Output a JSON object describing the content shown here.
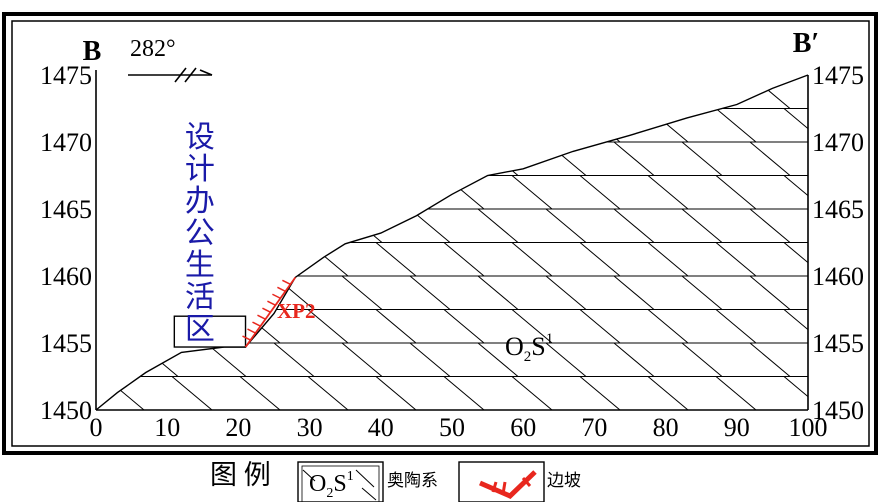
{
  "section": {
    "left_label": "B",
    "right_label": "B′",
    "bearing": "282°"
  },
  "axes": {
    "x_ticks": [
      "0",
      "10",
      "20",
      "30",
      "40",
      "50",
      "60",
      "70",
      "80",
      "90",
      "100"
    ],
    "y_left_ticks": [
      "1475",
      "1470",
      "1465",
      "1460",
      "1455",
      "1450"
    ],
    "y_right_ticks": [
      "1475",
      "1470",
      "1465",
      "1460",
      "1455",
      "1450"
    ]
  },
  "chart_data": {
    "type": "line",
    "x_range": [
      0,
      100
    ],
    "y_range": [
      1450,
      1475
    ],
    "terrain_profile": {
      "x": [
        0,
        3,
        7,
        12,
        18,
        21,
        25,
        28,
        32,
        35,
        40,
        45,
        50,
        55,
        60,
        67,
        75,
        83,
        90,
        95,
        100
      ],
      "y": [
        1450.0,
        1451.3,
        1452.8,
        1454.3,
        1454.7,
        1454.7,
        1457.2,
        1459.9,
        1461.4,
        1462.4,
        1463.2,
        1464.5,
        1466.1,
        1467.5,
        1468.0,
        1469.3,
        1470.5,
        1471.8,
        1472.8,
        1474.0,
        1475.0
      ]
    },
    "building": {
      "label": "设计办公生活区",
      "x_range": [
        11,
        21
      ],
      "y_range": [
        1454.7,
        1457.0
      ]
    },
    "slope": {
      "label": "XP2",
      "from": [
        21,
        1454.7
      ],
      "to": [
        28,
        1459.9
      ]
    },
    "unit_label": {
      "text": "O",
      "sub": "2",
      "main": "S",
      "sup": "1"
    }
  },
  "legend": {
    "title": "图 例",
    "unit_item": {
      "text": "O",
      "sub": "2",
      "main": "S",
      "sup": "1",
      "desc": "奥陶系"
    },
    "slope_item": {
      "desc": "边坡"
    }
  },
  "colors": {
    "annotation_blue": "#1a1aa8",
    "slope_red": "#e8271e",
    "line_black": "#000000"
  }
}
